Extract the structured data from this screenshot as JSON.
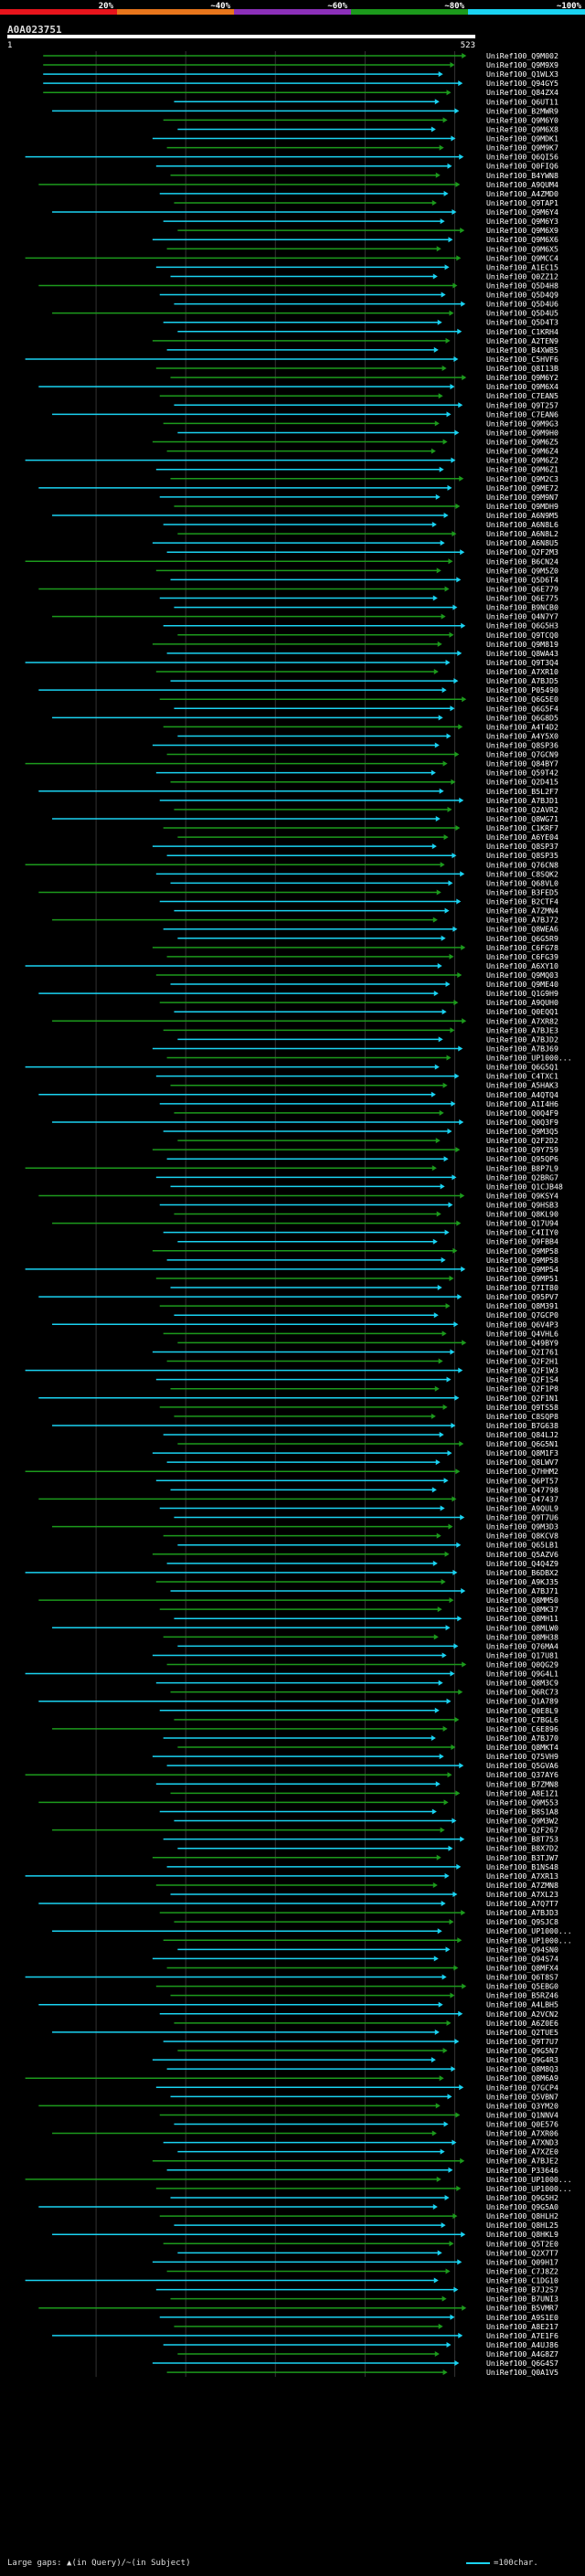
{
  "chart_data": {
    "type": "alignment-overview",
    "query_id": "A0A023751",
    "query_length": 523,
    "axis": {
      "start_label": "1",
      "end_label": "523"
    },
    "identity_scale": {
      "labels": [
        "20%",
        "~40%",
        "~60%",
        "~80%",
        "~100%"
      ],
      "colors": [
        "#e8141c",
        "#e8761c",
        "#8b2fb9",
        "#1c9a1c",
        "#1ad3f2"
      ]
    },
    "legend": {
      "gaps": "Large gaps: ▲(in Query)/~(in Subject)",
      "scale": "=100char."
    },
    "hits": [
      "UniRef100_Q9M002",
      "UniRef100_Q9M9X9",
      "UniRef100_Q1WLX3",
      "UniRef100_Q94GY5",
      "UniRef100_Q84ZX4",
      "UniRef100_Q6UT11",
      "UniRef100_B2MWR9",
      "UniRef100_Q9M6Y0",
      "UniRef100_Q9M6X8",
      "UniRef100_Q9MDK1",
      "UniRef100_Q9M9K7",
      "UniRef100_Q6QI56",
      "UniRef100_Q0FIQ6",
      "UniRef100_B4YWN8",
      "UniRef100_A9QUM4",
      "UniRef100_A4ZMD0",
      "UniRef100_Q9TAP1",
      "UniRef100_Q9M6Y4",
      "UniRef100_Q9M6Y3",
      "UniRef100_Q9M6X9",
      "UniRef100_Q9M6X6",
      "UniRef100_Q9M6X5",
      "UniRef100_Q9MCC4",
      "UniRef100_A1EC15",
      "UniRef100_Q0ZZ12",
      "UniRef100_Q5D4H8",
      "UniRef100_Q5D4Q9",
      "UniRef100_Q5D4U6",
      "UniRef100_Q5D4U5",
      "UniRef100_Q5D4T3",
      "UniRef100_C1KRH4",
      "UniRef100_A2TEN9",
      "UniRef100_B4XWB5",
      "UniRef100_C5HVF6",
      "UniRef100_Q8I13B",
      "UniRef100_Q9M6Y2",
      "UniRef100_Q9M6X4",
      "UniRef100_C7EAN5",
      "UniRef100_Q9T257",
      "UniRef100_C7EAN6",
      "UniRef100_Q9M9G3",
      "UniRef100_Q9M9H0",
      "UniRef100_Q9M6Z5",
      "UniRef100_Q9M6Z4",
      "UniRef100_Q9M6Z2",
      "UniRef100_Q9M6Z1",
      "UniRef100_Q9M2C3",
      "UniRef100_Q9ME72",
      "UniRef100_Q9M9N7",
      "UniRef100_Q9MDH9",
      "UniRef100_A6N9M5",
      "UniRef100_A6N8L6",
      "UniRef100_A6N8L2",
      "UniRef100_A6N8U5",
      "UniRef100_Q2F2M3",
      "UniRef100_B6CN24",
      "UniRef100_Q9M5Z0",
      "UniRef100_Q5D6T4",
      "UniRef100_Q6E779",
      "UniRef100_Q6E775",
      "UniRef100_B9NCB0",
      "UniRef100_Q4N7Y7",
      "UniRef100_Q6G5H3",
      "UniRef100_Q9TCQ0",
      "UniRef100_Q9M819",
      "UniRef100_Q8WA43",
      "UniRef100_Q9T3Q4",
      "UniRef100_A7XR10",
      "UniRef100_A7BJD5",
      "UniRef100_P05490",
      "UniRef100_Q6G5E0",
      "UniRef100_Q6G5F4",
      "UniRef100_Q6G8D5",
      "UniRef100_A4T4D2",
      "UniRef100_A4Y5X0",
      "UniRef100_Q8SP36",
      "UniRef100_Q7GCN9",
      "UniRef100_Q84BY7",
      "UniRef100_Q59T42",
      "UniRef100_Q2D415",
      "UniRef100_B5L2F7",
      "UniRef100_A7BJD1",
      "UniRef100_Q2AVR2",
      "UniRef100_Q8WG71",
      "UniRef100_C1KRF7",
      "UniRef100_A6YE04",
      "UniRef100_Q8SP37",
      "UniRef100_Q8SP35",
      "UniRef100_Q76CN8",
      "UniRef100_C8SQK2",
      "UniRef100_Q68VL0",
      "UniRef100_B3FED5",
      "UniRef100_B2CTF4",
      "UniRef100_A7ZMN4",
      "UniRef100_A7BJ72",
      "UniRef100_Q8WEA6",
      "UniRef100_Q6G5R9",
      "UniRef100_C6FG78",
      "UniRef100_C6FG39",
      "UniRef100_A6XY10",
      "UniRef100_Q9MQ03",
      "UniRef100_Q9ME40",
      "UniRef100_Q1G9H9",
      "UniRef100_A9QUH0",
      "UniRef100_Q0EQQ1",
      "UniRef100_A7XR82",
      "UniRef100_A7BJE3",
      "UniRef100_A7BJD2",
      "UniRef100_A7BJ69",
      "UniRef100_UP1000...",
      "UniRef100_Q6G5Q1",
      "UniRef100_C4TXC1",
      "UniRef100_A5HAK3",
      "UniRef100_A4QTQ4",
      "UniRef100_A1I4H6",
      "UniRef100_Q0Q4F9",
      "UniRef100_Q0Q3F9",
      "UniRef100_Q9M3Q5",
      "UniRef100_Q2F2D2",
      "UniRef100_Q9Y759",
      "UniRef100_Q95QP6",
      "UniRef100_B8P7L9",
      "UniRef100_Q2BRG7",
      "UniRef100_Q1CJB48",
      "UniRef100_Q9KSY4",
      "UniRef100_Q9HSB3",
      "UniRef100_Q8KL90",
      "UniRef100_Q17U94",
      "UniRef100_C4IIY0",
      "UniRef100_Q9FBB4",
      "UniRef100_Q9MP58",
      "UniRef100_Q9MP58",
      "UniRef100_Q9MP54",
      "UniRef100_Q9MP51",
      "UniRef100_Q7IT80",
      "UniRef100_Q95PV7",
      "UniRef100_Q8M391",
      "UniRef100_Q7GCP0",
      "UniRef100_Q6V4P3",
      "UniRef100_Q4VHL6",
      "UniRef100_Q49BY9",
      "UniRef100_Q2I761",
      "UniRef100_Q2F2H1",
      "UniRef100_Q2F1W3",
      "UniRef100_Q2F1S4",
      "UniRef100_Q2F1P8",
      "UniRef100_Q2F1N1",
      "UniRef100_Q9TS58",
      "UniRef100_C8SQP8",
      "UniRef100_B7G638",
      "UniRef100_Q84LJ2",
      "UniRef100_Q6G5N1",
      "UniRef100_Q8M1F3",
      "UniRef100_Q8LWV7",
      "UniRef100_Q7HHM2",
      "UniRef100_Q6PT57",
      "UniRef100_Q47798",
      "UniRef100_Q47437",
      "UniRef100_A9QUL9",
      "UniRef100_Q9T7U6",
      "UniRef100_Q9M3D3",
      "UniRef100_Q8KCV8",
      "UniRef100_Q65LB1",
      "UniRef100_Q5AZV6",
      "UniRef100_Q4Q4Z9",
      "UniRef100_B6DBX2",
      "UniRef100_A9KJ35",
      "UniRef100_A7BJ71",
      "UniRef100_Q8MM50",
      "UniRef100_Q8MK37",
      "UniRef100_Q8MH11",
      "UniRef100_Q8MLW0",
      "UniRef100_Q8MH38",
      "UniRef100_Q76MA4",
      "UniRef100_Q17U81",
      "UniRef100_Q0QG29",
      "UniRef100_Q9G4L1",
      "UniRef100_Q8M3C9",
      "UniRef100_Q6RC73",
      "UniRef100_Q1A789",
      "UniRef100_Q0E8L9",
      "UniRef100_C7BGL6",
      "UniRef100_C6E896",
      "UniRef100_A7BJ70",
      "UniRef100_Q8MKT4",
      "UniRef100_Q75VH9",
      "UniRef100_Q5GVA6",
      "UniRef100_Q37AY6",
      "UniRef100_B7ZMN8",
      "UniRef100_A8E1Z1",
      "UniRef100_Q9M553",
      "UniRef100_B8S1A8",
      "UniRef100_Q9M3W2",
      "UniRef100_Q2F267",
      "UniRef100_B8T753",
      "UniRef100_B8X7D2",
      "UniRef100_B3TJW7",
      "UniRef100_B1NS48",
      "UniRef100_A7XR13",
      "UniRef100_A7ZMN8",
      "UniRef100_A7XL23",
      "UniRef100_A7Q7T7",
      "UniRef100_A7BJD3",
      "UniRef100_Q9SJC8",
      "UniRef100_UP1000...",
      "UniRef100_UP1000...",
      "UniRef100_Q94SN0",
      "UniRef100_Q94S74",
      "UniRef100_Q8MFX4",
      "UniRef100_Q6T8S7",
      "UniRef100_Q5EBG0",
      "UniRef100_B5RZ46",
      "UniRef100_A4LBH5",
      "UniRef100_A2VCN2",
      "UniRef100_A6Z0E6",
      "UniRef100_Q2TUE5",
      "UniRef100_Q9T7U7",
      "UniRef100_Q9G5N7",
      "UniRef100_Q9G4R3",
      "UniRef100_Q8M8Q3",
      "UniRef100_Q8M6A9",
      "UniRef100_Q7GCP4",
      "UniRef100_Q5VBN7",
      "UniRef100_Q3YM20",
      "UniRef100_Q1NNV4",
      "UniRef100_Q0E576",
      "UniRef100_A7XR06",
      "UniRef100_A7XND3",
      "UniRef100_A7XZE0",
      "UniRef100_A7BJE2",
      "UniRef100_P33646",
      "UniRef100_UP1000...",
      "UniRef100_UP1000...",
      "UniRef100_Q9G5H2",
      "UniRef100_Q9G5A0",
      "UniRef100_Q8HLH2",
      "UniRef100_Q8HL25",
      "UniRef100_Q8HKL9",
      "UniRef100_Q5T2E0",
      "UniRef100_Q2X7T7",
      "UniRef100_Q09H17",
      "UniRef100_C7J8Z2",
      "UniRef100_C1DG10",
      "UniRef100_B7J2S7",
      "UniRef100_B7UNI3",
      "UniRef100_B5VMR7",
      "UniRef100_A9S1E0",
      "UniRef100_A8E217",
      "UniRef100_A7E1F6",
      "UniRef100_A4UJ86",
      "UniRef100_A4G8Z7",
      "UniRef100_Q6G4S7",
      "UniRef100_Q0A1V5"
    ]
  }
}
